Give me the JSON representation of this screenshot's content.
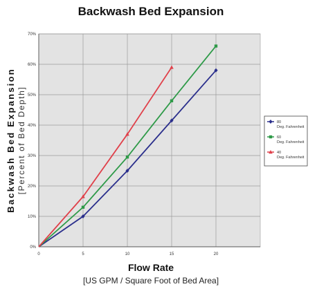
{
  "chart_data": {
    "type": "line",
    "title": "Backwash Bed Expansion",
    "ylabel": "Backwash Bed Expansion",
    "ylabel_sub": "[Percent of Bed Depth]",
    "xlabel": "Flow Rate",
    "xlabel_sub": "[US GPM / Square Foot of Bed Area]",
    "xlim": [
      0,
      25
    ],
    "ylim": [
      0,
      70
    ],
    "xticks": [
      "0",
      "5",
      "10",
      "15",
      "20"
    ],
    "yticks": [
      "0%",
      "10%",
      "20%",
      "30%",
      "40%",
      "50%",
      "60%",
      "70%"
    ],
    "grid": true,
    "legend_position": "right",
    "series": [
      {
        "name": "80",
        "name_line2": "Deg. Fahrenheit",
        "color": "#2b2f8c",
        "marker": "diamond",
        "x": [
          0,
          5,
          10,
          15,
          20
        ],
        "y": [
          0,
          10,
          25,
          41.5,
          58
        ]
      },
      {
        "name": "60",
        "name_line2": "Deg. Fahrenheit",
        "color": "#2e9a48",
        "marker": "square",
        "x": [
          0,
          5,
          10,
          15,
          20
        ],
        "y": [
          0,
          13,
          29.5,
          48,
          66
        ]
      },
      {
        "name": "40",
        "name_line2": "Deg. Fahrenheit",
        "color": "#e0404a",
        "marker": "triangle",
        "x": [
          0,
          5,
          10,
          15
        ],
        "y": [
          0,
          16.5,
          37,
          59
        ]
      }
    ]
  }
}
